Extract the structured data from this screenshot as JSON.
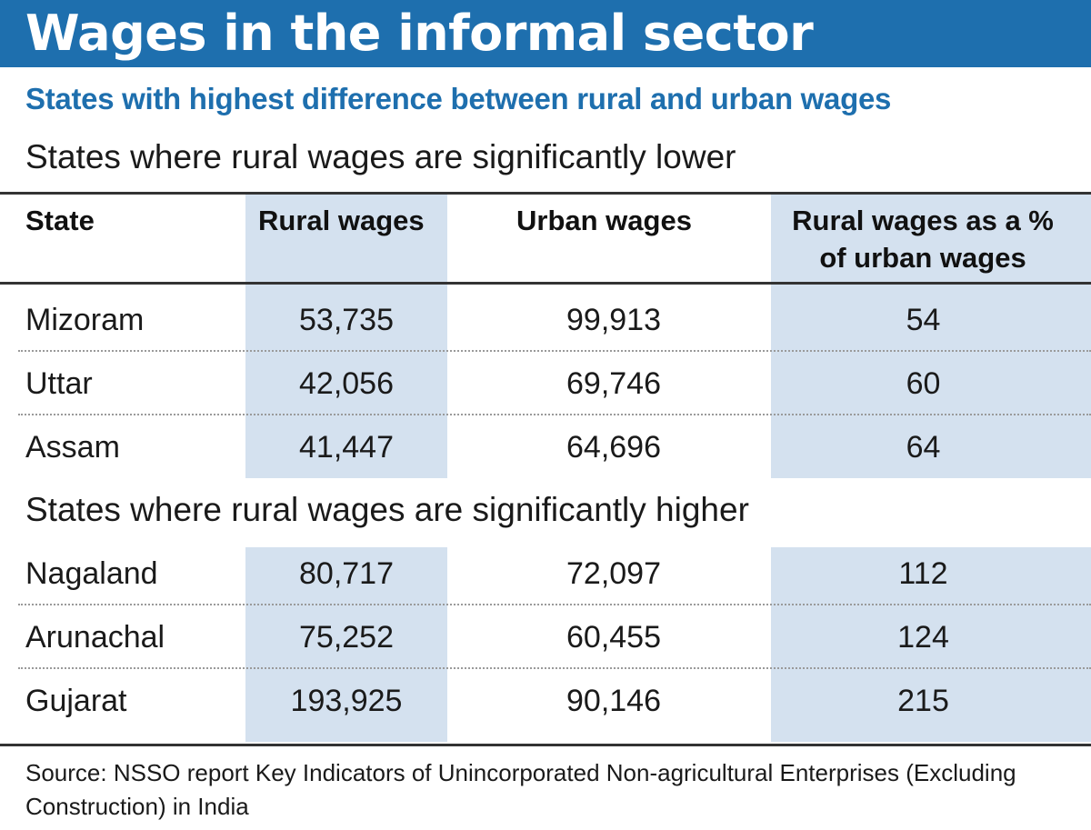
{
  "title": "Wages in the informal sector",
  "subtitle": "States with highest difference between rural and urban wages",
  "columns": [
    "State",
    "Rural wages",
    "Urban wages",
    "Rural wages as a % of urban wages"
  ],
  "sections": [
    {
      "heading": "States where rural wages are significantly lower",
      "rows": [
        {
          "state": "Mizoram",
          "rural": "53,735",
          "urban": "99,913",
          "pct": "54"
        },
        {
          "state": "Uttar",
          "rural": "42,056",
          "urban": "69,746",
          "pct": "60"
        },
        {
          "state": "Assam",
          "rural": "41,447",
          "urban": "64,696",
          "pct": "64"
        }
      ]
    },
    {
      "heading": "States where rural wages are significantly higher",
      "rows": [
        {
          "state": "Nagaland",
          "rural": "80,717",
          "urban": "72,097",
          "pct": "112"
        },
        {
          "state": "Arunachal",
          "rural": "75,252",
          "urban": "60,455",
          "pct": "124"
        },
        {
          "state": "Gujarat",
          "rural": "193,925",
          "urban": "90,146",
          "pct": "215"
        }
      ]
    }
  ],
  "source": "Source: NSSO report Key Indicators of Unincorporated Non-agricultural Enterprises (Excluding Construction) in India",
  "colors": {
    "banner": "#1e6fae",
    "subtitle": "#1e6fae",
    "shade": "#d4e1ef"
  },
  "chart_data": {
    "type": "table",
    "title": "Wages in the informal sector",
    "subtitle": "States with highest difference between rural and urban wages",
    "columns": [
      "State",
      "Rural wages",
      "Urban wages",
      "Rural wages as a % of urban wages"
    ],
    "groups": [
      {
        "name": "States where rural wages are significantly lower",
        "rows": [
          [
            "Mizoram",
            53735,
            99913,
            54
          ],
          [
            "Uttar",
            42056,
            69746,
            60
          ],
          [
            "Assam",
            41447,
            64696,
            64
          ]
        ]
      },
      {
        "name": "States where rural wages are significantly higher",
        "rows": [
          [
            "Nagaland",
            80717,
            72097,
            112
          ],
          [
            "Arunachal",
            75252,
            60455,
            124
          ],
          [
            "Gujarat",
            193925,
            90146,
            215
          ]
        ]
      }
    ]
  }
}
